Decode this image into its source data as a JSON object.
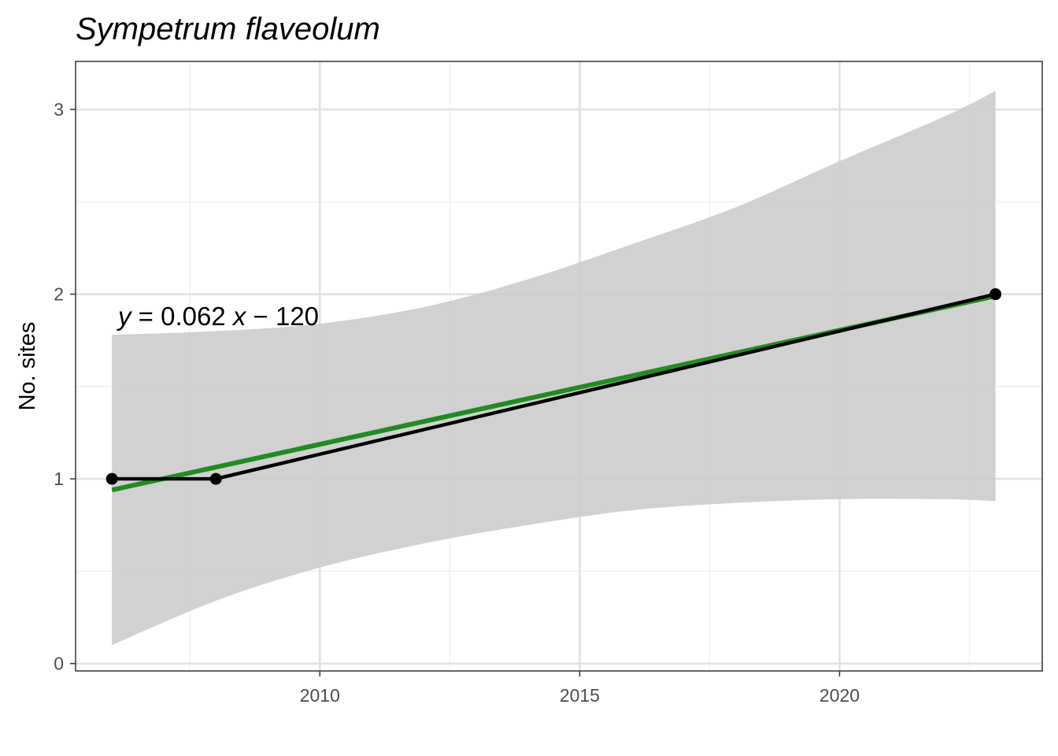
{
  "chart_data": {
    "type": "line",
    "title": "Sympetrum flaveolum",
    "xlabel": "",
    "ylabel": "No. sites",
    "xlim": [
      2005.3,
      2023.9
    ],
    "ylim": [
      -0.04,
      3.26
    ],
    "x_ticks": [
      2010,
      2015,
      2020
    ],
    "x_tick_labels": [
      "2010",
      "2015",
      "2020"
    ],
    "x_minor_ticks": [
      2007.5,
      2012.5,
      2017.5,
      2022.5
    ],
    "y_ticks": [
      0,
      1,
      2,
      3
    ],
    "y_tick_labels": [
      "0",
      "1",
      "2",
      "3"
    ],
    "y_minor_ticks": [
      0.5,
      1.5,
      2.5
    ],
    "grid": true,
    "series": [
      {
        "role": "observed",
        "x": [
          2006,
          2008,
          2023
        ],
        "y": [
          1,
          1,
          2
        ],
        "color": "#000000"
      },
      {
        "role": "linear-fit",
        "x": [
          2006,
          2023
        ],
        "y": [
          0.94,
          1.99
        ],
        "color": "#228b22"
      }
    ],
    "confidence_band": {
      "color": "#cccccc",
      "x": [
        2006,
        2008,
        2010,
        2012,
        2014,
        2016,
        2018,
        2020,
        2022,
        2023
      ],
      "lower": [
        0.1,
        0.34,
        0.52,
        0.65,
        0.75,
        0.83,
        0.87,
        0.89,
        0.89,
        0.88
      ],
      "upper": [
        1.78,
        1.8,
        1.84,
        1.93,
        2.08,
        2.27,
        2.47,
        2.72,
        2.96,
        3.1
      ]
    },
    "annotation": {
      "var_y": "y",
      "middle": " = 0.062 ",
      "var_x": "x",
      "minus": " − ",
      "intercept": "120"
    },
    "colors": {
      "panel_border": "#333333",
      "grid_major": "#e0e0e0",
      "grid_minor": "#efefef",
      "tick_text": "#4d4d4d"
    }
  }
}
